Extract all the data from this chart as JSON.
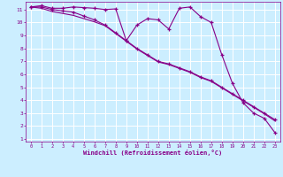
{
  "xlabel": "Windchill (Refroidissement éolien,°C)",
  "background_color": "#cceeff",
  "grid_color": "#ffffff",
  "line_color": "#880088",
  "x_ticks": [
    0,
    1,
    2,
    3,
    4,
    5,
    6,
    7,
    8,
    9,
    10,
    11,
    12,
    13,
    14,
    15,
    16,
    17,
    18,
    19,
    20,
    21,
    22,
    23
  ],
  "y_ticks": [
    1,
    2,
    3,
    4,
    5,
    6,
    7,
    8,
    9,
    10,
    11
  ],
  "xlim": [
    -0.5,
    23.5
  ],
  "ylim": [
    0.8,
    11.6
  ],
  "line1_x": [
    0,
    1,
    2,
    3,
    4,
    5,
    6,
    7,
    8,
    9,
    10,
    11,
    12,
    13,
    14,
    15,
    16,
    17,
    18,
    19,
    20,
    21,
    22,
    23
  ],
  "line1_y": [
    11.2,
    11.3,
    11.1,
    11.1,
    11.2,
    11.15,
    11.1,
    11.0,
    11.05,
    8.6,
    9.8,
    10.3,
    10.2,
    9.5,
    11.1,
    11.2,
    10.45,
    10.0,
    7.5,
    5.3,
    3.8,
    3.0,
    2.6,
    1.5
  ],
  "line2_x": [
    0,
    1,
    2,
    3,
    4,
    5,
    6,
    7,
    8,
    9,
    10,
    11,
    12,
    13,
    14,
    15,
    16,
    17,
    18,
    19,
    20,
    21,
    22,
    23
  ],
  "line2_y": [
    11.2,
    11.2,
    11.0,
    10.9,
    10.8,
    10.5,
    10.2,
    9.8,
    9.2,
    8.6,
    8.0,
    7.5,
    7.0,
    6.8,
    6.5,
    6.2,
    5.8,
    5.5,
    5.0,
    4.5,
    4.0,
    3.5,
    3.0,
    2.5
  ],
  "line3_x": [
    0,
    1,
    2,
    3,
    4,
    5,
    6,
    7,
    8,
    9,
    10,
    11,
    12,
    13,
    14,
    15,
    16,
    17,
    18,
    19,
    20,
    21,
    22,
    23
  ],
  "line3_y": [
    11.2,
    11.1,
    10.85,
    10.7,
    10.55,
    10.3,
    10.05,
    9.75,
    9.15,
    8.55,
    7.95,
    7.45,
    6.95,
    6.75,
    6.45,
    6.15,
    5.75,
    5.45,
    4.95,
    4.45,
    3.95,
    3.45,
    2.95,
    2.4
  ]
}
